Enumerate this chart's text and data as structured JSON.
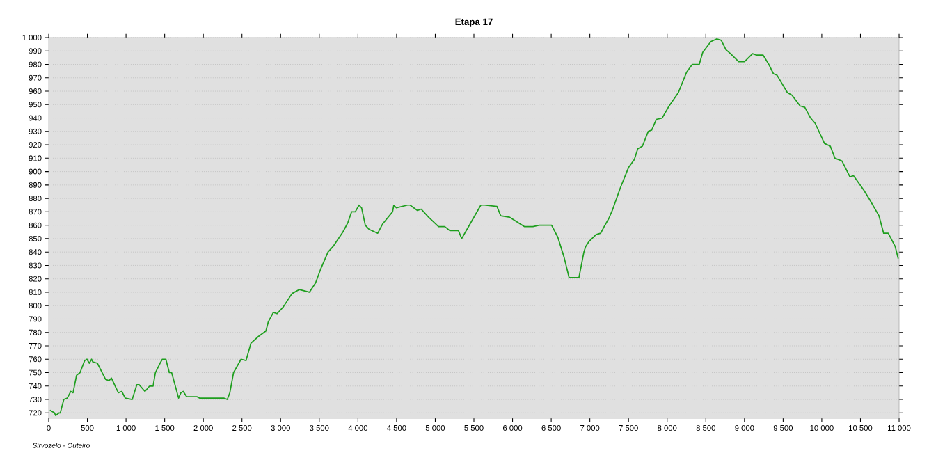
{
  "chart_data": {
    "type": "line",
    "title": "Etapa 17",
    "annotations": [
      "Sirvozelo - Outeiro"
    ],
    "grid": "y",
    "xlim": [
      0,
      11000
    ],
    "ylim": [
      716,
      1000
    ],
    "xticks": [
      0,
      500,
      {
        "value": 1000,
        "label": "1 000"
      },
      {
        "value": 1500,
        "label": "1 500"
      },
      {
        "value": 2000,
        "label": "2 000"
      },
      {
        "value": 2500,
        "label": "2 500"
      },
      {
        "value": 3000,
        "label": "3 000"
      },
      {
        "value": 3500,
        "label": "3 500"
      },
      {
        "value": 4000,
        "label": "4 000"
      },
      {
        "value": 4500,
        "label": "4 500"
      },
      {
        "value": 5000,
        "label": "5 000"
      },
      {
        "value": 5500,
        "label": "5 500"
      },
      {
        "value": 6000,
        "label": "6 000"
      },
      {
        "value": 6500,
        "label": "6 500"
      },
      {
        "value": 7000,
        "label": "7 000"
      },
      {
        "value": 7500,
        "label": "7 500"
      },
      {
        "value": 8000,
        "label": "8 000"
      },
      {
        "value": 8500,
        "label": "8 500"
      },
      {
        "value": 9000,
        "label": "9 000"
      },
      {
        "value": 9500,
        "label": "9 500"
      },
      {
        "value": 10000,
        "label": "10 000"
      },
      {
        "value": 10500,
        "label": "10 500"
      },
      {
        "value": 11000,
        "label": "11 000"
      }
    ],
    "yticks": [
      720,
      730,
      740,
      750,
      760,
      770,
      780,
      790,
      800,
      810,
      820,
      830,
      840,
      850,
      860,
      870,
      880,
      890,
      900,
      910,
      920,
      930,
      940,
      950,
      960,
      970,
      980,
      990,
      {
        "value": 1000,
        "label": "1 000"
      }
    ],
    "series": [
      {
        "color": "#1e9e1e",
        "x": [
          15,
          75,
          90,
          135,
          150,
          195,
          240,
          285,
          315,
          360,
          405,
          465,
          495,
          525,
          555,
          570,
          630,
          735,
          780,
          810,
          900,
          945,
          990,
          1080,
          1140,
          1170,
          1245,
          1305,
          1350,
          1380,
          1440,
          1470,
          1515,
          1560,
          1590,
          1680,
          1710,
          1740,
          1785,
          1830,
          1920,
          1950,
          2190,
          2265,
          2310,
          2343,
          2391,
          2488,
          2552,
          2616,
          2713,
          2809,
          2841,
          2906,
          2954,
          3034,
          3147,
          3243,
          3372,
          3452,
          3516,
          3613,
          3677,
          3806,
          3870,
          3918,
          3966,
          4014,
          4047,
          4095,
          4143,
          4256,
          4320,
          4448,
          4464,
          4497,
          4641,
          4674,
          4770,
          4818,
          4914,
          5043,
          5123,
          5188,
          5300,
          5342,
          5461,
          5590,
          5638,
          5798,
          5847,
          5959,
          6152,
          6264,
          6345,
          6505,
          6586,
          6667,
          6731,
          6859,
          6923,
          6945,
          6990,
          7080,
          7140,
          7185,
          7245,
          7290,
          7395,
          7500,
          7575,
          7620,
          7680,
          7755,
          7800,
          7860,
          7935,
          8025,
          8145,
          8250,
          8325,
          8415,
          8460,
          8565,
          8640,
          8700,
          8760,
          8820,
          8925,
          9000,
          9105,
          9150,
          9240,
          9315,
          9375,
          9420,
          9555,
          9615,
          9720,
          9780,
          9855,
          9915,
          10035,
          10110,
          10170,
          10260,
          10365,
          10410,
          10545,
          10620,
          10740,
          10800,
          10860,
          10950,
          10989
        ],
        "values": [
          722,
          720,
          718,
          720,
          720,
          730,
          731,
          736,
          735,
          748,
          750,
          759,
          760,
          757,
          760,
          758,
          757,
          745,
          744,
          746,
          735,
          736,
          731,
          730,
          741,
          741,
          736,
          740,
          740,
          750,
          757,
          760,
          760,
          750,
          750,
          731,
          735,
          736,
          732,
          732,
          732,
          731,
          731,
          731,
          730,
          735,
          750,
          760,
          759,
          772,
          777,
          781,
          788,
          795,
          794,
          799,
          809,
          812,
          810,
          817,
          827,
          840,
          844,
          855,
          862,
          870,
          870,
          875,
          873,
          860,
          857,
          854,
          861,
          870,
          875,
          873,
          875,
          875,
          871,
          872,
          866,
          859,
          859,
          856,
          856,
          850,
          862,
          875,
          875,
          874,
          867,
          866,
          859,
          859,
          860,
          860,
          851,
          836,
          821,
          821,
          840,
          844,
          848,
          853,
          854,
          859,
          865,
          871,
          888,
          903,
          909,
          917,
          919,
          930,
          931,
          939,
          940,
          949,
          959,
          974,
          980,
          980,
          989,
          997,
          999,
          998,
          991,
          988,
          982,
          982,
          988,
          987,
          987,
          980,
          973,
          972,
          959,
          957,
          949,
          948,
          940,
          936,
          921,
          919,
          910,
          908,
          896,
          897,
          886,
          879,
          867,
          854,
          854,
          844,
          835
        ]
      }
    ]
  }
}
